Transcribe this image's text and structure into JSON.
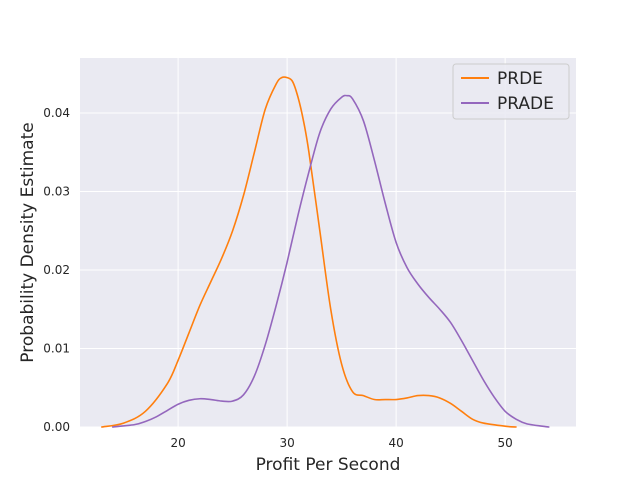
{
  "chart_data": {
    "type": "line",
    "xlabel": "Profit Per Second",
    "ylabel": "Probability Density Estimate",
    "xlim": [
      11.0,
      56.5
    ],
    "ylim": [
      0.0,
      0.047
    ],
    "xticks": [
      20,
      30,
      40,
      50
    ],
    "xtick_labels": [
      "20",
      "30",
      "40",
      "50"
    ],
    "yticks": [
      0.0,
      0.01,
      0.02,
      0.03,
      0.04
    ],
    "ytick_labels": [
      "0.00",
      "0.01",
      "0.02",
      "0.03",
      "0.04"
    ],
    "grid": true,
    "legend_position": "top-right",
    "background_color": "#eaeaf2",
    "grid_color": "#ffffff",
    "series": [
      {
        "name": "PRDE",
        "color": "#ff7f0e",
        "x": [
          13,
          15,
          17,
          19,
          20,
          21,
          22,
          23,
          24,
          25,
          26,
          27,
          28,
          29,
          29.5,
          30,
          30.5,
          31,
          31.5,
          32,
          33,
          34,
          35,
          36,
          37,
          38,
          39,
          40,
          41,
          42,
          43,
          44,
          45,
          46,
          47,
          48,
          50,
          51
        ],
        "y": [
          0.0,
          0.0005,
          0.002,
          0.0055,
          0.0085,
          0.012,
          0.0155,
          0.0185,
          0.0215,
          0.025,
          0.0295,
          0.035,
          0.0405,
          0.0437,
          0.0445,
          0.0445,
          0.044,
          0.042,
          0.039,
          0.035,
          0.025,
          0.015,
          0.008,
          0.0045,
          0.004,
          0.0035,
          0.0035,
          0.0035,
          0.0037,
          0.004,
          0.004,
          0.0037,
          0.003,
          0.002,
          0.001,
          0.0005,
          0.0001,
          0.0
        ]
      },
      {
        "name": "PRADE",
        "color": "#9467bd",
        "x": [
          14,
          16,
          17,
          18,
          19,
          20,
          21,
          22,
          23,
          24,
          25,
          26,
          27,
          28,
          29,
          30,
          31,
          32,
          33,
          34,
          35,
          35.5,
          36,
          37,
          38,
          39,
          40,
          41,
          42,
          43,
          44,
          45,
          46,
          47,
          48,
          49,
          50,
          51,
          52,
          54
        ],
        "y": [
          0.0,
          0.0003,
          0.0007,
          0.0013,
          0.0021,
          0.0029,
          0.0034,
          0.0036,
          0.0035,
          0.0033,
          0.0033,
          0.0041,
          0.0065,
          0.0105,
          0.0155,
          0.021,
          0.027,
          0.0325,
          0.0375,
          0.0405,
          0.042,
          0.0422,
          0.0418,
          0.039,
          0.034,
          0.0285,
          0.0235,
          0.0203,
          0.0182,
          0.0165,
          0.015,
          0.0133,
          0.011,
          0.0085,
          0.006,
          0.0038,
          0.002,
          0.001,
          0.0004,
          0.0
        ]
      }
    ]
  }
}
